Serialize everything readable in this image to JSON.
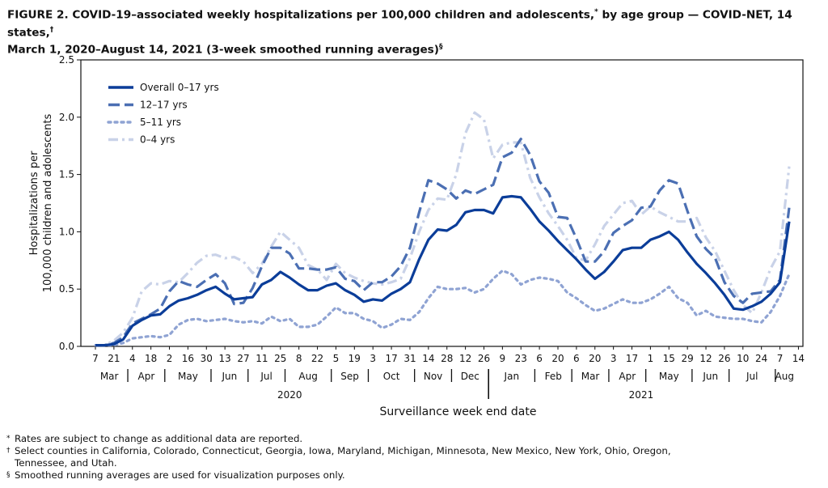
{
  "title": {
    "line1": "FIGURE 2. COVID-19–associated weekly hospitalizations per 100,000 children and adolescents,",
    "mark1": "*",
    "line1b": " by age group — COVID-NET, 14 states,",
    "mark2": "†",
    "line2": "March 1, 2020–August 14, 2021 (3-week smoothed running averages)",
    "mark3": "§"
  },
  "footnotes": [
    {
      "mark": "*",
      "text": "Rates are subject to change as additional data are reported."
    },
    {
      "mark": "†",
      "text": "Select counties in California, Colorado, Connecticut, Georgia, Iowa, Maryland, Michigan, Minnesota, New Mexico, New York, Ohio, Oregon,",
      "text2": "Tennessee, and Utah."
    },
    {
      "mark": "§",
      "text": "Smoothed running averages are used for visualization purposes only."
    }
  ],
  "chart_data": {
    "type": "line",
    "title": "",
    "xlabel": "Surveillance week end date",
    "ylabel_line1": "Hospitalizations per",
    "ylabel_line2": "100,000 children and adolescents",
    "ylim": [
      0,
      2.5
    ],
    "yticks": [
      "0.0",
      "0.5",
      "1.0",
      "1.5",
      "2.0",
      "2.5"
    ],
    "grid": false,
    "legend_position": "top-left",
    "x": [
      "2020-03-07",
      "2020-03-14",
      "2020-03-21",
      "2020-03-28",
      "2020-04-04",
      "2020-04-11",
      "2020-04-18",
      "2020-04-25",
      "2020-05-02",
      "2020-05-09",
      "2020-05-16",
      "2020-05-23",
      "2020-05-30",
      "2020-06-06",
      "2020-06-13",
      "2020-06-20",
      "2020-06-27",
      "2020-07-04",
      "2020-07-11",
      "2020-07-18",
      "2020-07-25",
      "2020-08-01",
      "2020-08-08",
      "2020-08-15",
      "2020-08-22",
      "2020-08-29",
      "2020-09-05",
      "2020-09-12",
      "2020-09-19",
      "2020-09-26",
      "2020-10-03",
      "2020-10-10",
      "2020-10-17",
      "2020-10-24",
      "2020-10-31",
      "2020-11-07",
      "2020-11-14",
      "2020-11-21",
      "2020-11-28",
      "2020-12-05",
      "2020-12-12",
      "2020-12-19",
      "2020-12-26",
      "2021-01-02",
      "2021-01-09",
      "2021-01-16",
      "2021-01-23",
      "2021-01-30",
      "2021-02-06",
      "2021-02-13",
      "2021-02-20",
      "2021-02-27",
      "2021-03-06",
      "2021-03-13",
      "2021-03-20",
      "2021-03-27",
      "2021-04-03",
      "2021-04-10",
      "2021-04-17",
      "2021-04-24",
      "2021-05-01",
      "2021-05-08",
      "2021-05-15",
      "2021-05-22",
      "2021-05-29",
      "2021-06-05",
      "2021-06-12",
      "2021-06-19",
      "2021-06-26",
      "2021-07-03",
      "2021-07-10",
      "2021-07-17",
      "2021-07-24",
      "2021-07-31",
      "2021-08-07",
      "2021-08-14"
    ],
    "series": [
      {
        "name": "Overall 0–17 yrs",
        "color": "#0b3d99",
        "style": "solid",
        "values": [
          0.01,
          0.01,
          0.02,
          0.06,
          0.18,
          0.23,
          0.27,
          0.28,
          0.35,
          0.4,
          0.42,
          0.45,
          0.49,
          0.52,
          0.46,
          0.41,
          0.42,
          0.43,
          0.54,
          0.58,
          0.65,
          0.6,
          0.54,
          0.49,
          0.49,
          0.53,
          0.55,
          0.49,
          0.45,
          0.39,
          0.41,
          0.4,
          0.46,
          0.5,
          0.56,
          0.76,
          0.93,
          1.02,
          1.01,
          1.06,
          1.17,
          1.19,
          1.19,
          1.16,
          1.3,
          1.31,
          1.3,
          1.2,
          1.09,
          1.01,
          0.92,
          0.84,
          0.76,
          0.67,
          0.59,
          0.65,
          0.74,
          0.84,
          0.86,
          0.86,
          0.93,
          0.96,
          1.0,
          0.93,
          0.82,
          0.72,
          0.64,
          0.55,
          0.45,
          0.33,
          0.32,
          0.35,
          0.39,
          0.46,
          0.56,
          1.09
        ]
      },
      {
        "name": "12–17 yrs",
        "color": "#4b6fb3",
        "style": "dashed",
        "values": [
          0.01,
          0.01,
          0.03,
          0.08,
          0.2,
          0.24,
          0.28,
          0.33,
          0.48,
          0.57,
          0.54,
          0.52,
          0.58,
          0.63,
          0.55,
          0.37,
          0.38,
          0.51,
          0.7,
          0.86,
          0.86,
          0.81,
          0.68,
          0.68,
          0.67,
          0.67,
          0.69,
          0.59,
          0.57,
          0.49,
          0.56,
          0.56,
          0.61,
          0.7,
          0.86,
          1.17,
          1.45,
          1.42,
          1.37,
          1.29,
          1.36,
          1.33,
          1.37,
          1.41,
          1.65,
          1.69,
          1.81,
          1.67,
          1.44,
          1.34,
          1.13,
          1.12,
          0.94,
          0.74,
          0.74,
          0.83,
          0.99,
          1.05,
          1.1,
          1.21,
          1.22,
          1.36,
          1.45,
          1.42,
          1.18,
          0.96,
          0.85,
          0.77,
          0.56,
          0.44,
          0.38,
          0.46,
          0.47,
          0.48,
          0.58,
          1.21
        ]
      },
      {
        "name": "5–11 yrs",
        "color": "#8fa3d3",
        "style": "dotted",
        "values": [
          0.01,
          0.01,
          0.01,
          0.03,
          0.07,
          0.08,
          0.09,
          0.08,
          0.1,
          0.19,
          0.23,
          0.24,
          0.22,
          0.23,
          0.24,
          0.22,
          0.21,
          0.22,
          0.2,
          0.26,
          0.22,
          0.24,
          0.17,
          0.17,
          0.19,
          0.26,
          0.34,
          0.29,
          0.29,
          0.24,
          0.22,
          0.16,
          0.19,
          0.24,
          0.23,
          0.3,
          0.42,
          0.52,
          0.5,
          0.5,
          0.51,
          0.47,
          0.5,
          0.59,
          0.66,
          0.63,
          0.54,
          0.58,
          0.6,
          0.59,
          0.57,
          0.47,
          0.42,
          0.36,
          0.31,
          0.33,
          0.37,
          0.41,
          0.38,
          0.38,
          0.41,
          0.46,
          0.52,
          0.42,
          0.38,
          0.27,
          0.31,
          0.26,
          0.25,
          0.24,
          0.24,
          0.22,
          0.21,
          0.3,
          0.44,
          0.63
        ]
      },
      {
        "name": "0–4 yrs",
        "color": "#c9d2e8",
        "style": "dashdot",
        "values": [
          0.01,
          0.01,
          0.05,
          0.12,
          0.25,
          0.48,
          0.55,
          0.54,
          0.57,
          0.56,
          0.64,
          0.73,
          0.79,
          0.8,
          0.77,
          0.78,
          0.74,
          0.64,
          0.72,
          0.87,
          1.0,
          0.93,
          0.86,
          0.71,
          0.67,
          0.58,
          0.72,
          0.64,
          0.6,
          0.57,
          0.55,
          0.54,
          0.56,
          0.59,
          0.77,
          1.0,
          1.19,
          1.29,
          1.28,
          1.5,
          1.86,
          2.04,
          1.98,
          1.64,
          1.76,
          1.78,
          1.78,
          1.47,
          1.3,
          1.16,
          1.05,
          0.93,
          0.77,
          0.75,
          0.89,
          1.05,
          1.15,
          1.25,
          1.27,
          1.15,
          1.22,
          1.17,
          1.13,
          1.09,
          1.09,
          1.12,
          0.95,
          0.83,
          0.66,
          0.49,
          0.36,
          0.29,
          0.47,
          0.68,
          0.83,
          1.57
        ]
      }
    ],
    "x_tick_labels": [
      "7",
      "21",
      "4",
      "18",
      "2",
      "16",
      "30",
      "13",
      "27",
      "11",
      "25",
      "8",
      "22",
      "5",
      "19",
      "3",
      "17",
      "31",
      "14",
      "28",
      "12",
      "26",
      "9",
      "23",
      "6",
      "20",
      "6",
      "20",
      "3",
      "17",
      "1",
      "15",
      "29",
      "12",
      "26",
      "10",
      "24",
      "7",
      "14"
    ],
    "month_labels": [
      "Mar",
      "Apr",
      "May",
      "Jun",
      "Jul",
      "Aug",
      "Sep",
      "Oct",
      "Nov",
      "Dec",
      "Jan",
      "Feb",
      "Mar",
      "Apr",
      "May",
      "Jun",
      "Jul",
      "Aug"
    ],
    "year_labels": [
      "2020",
      "2021"
    ]
  }
}
